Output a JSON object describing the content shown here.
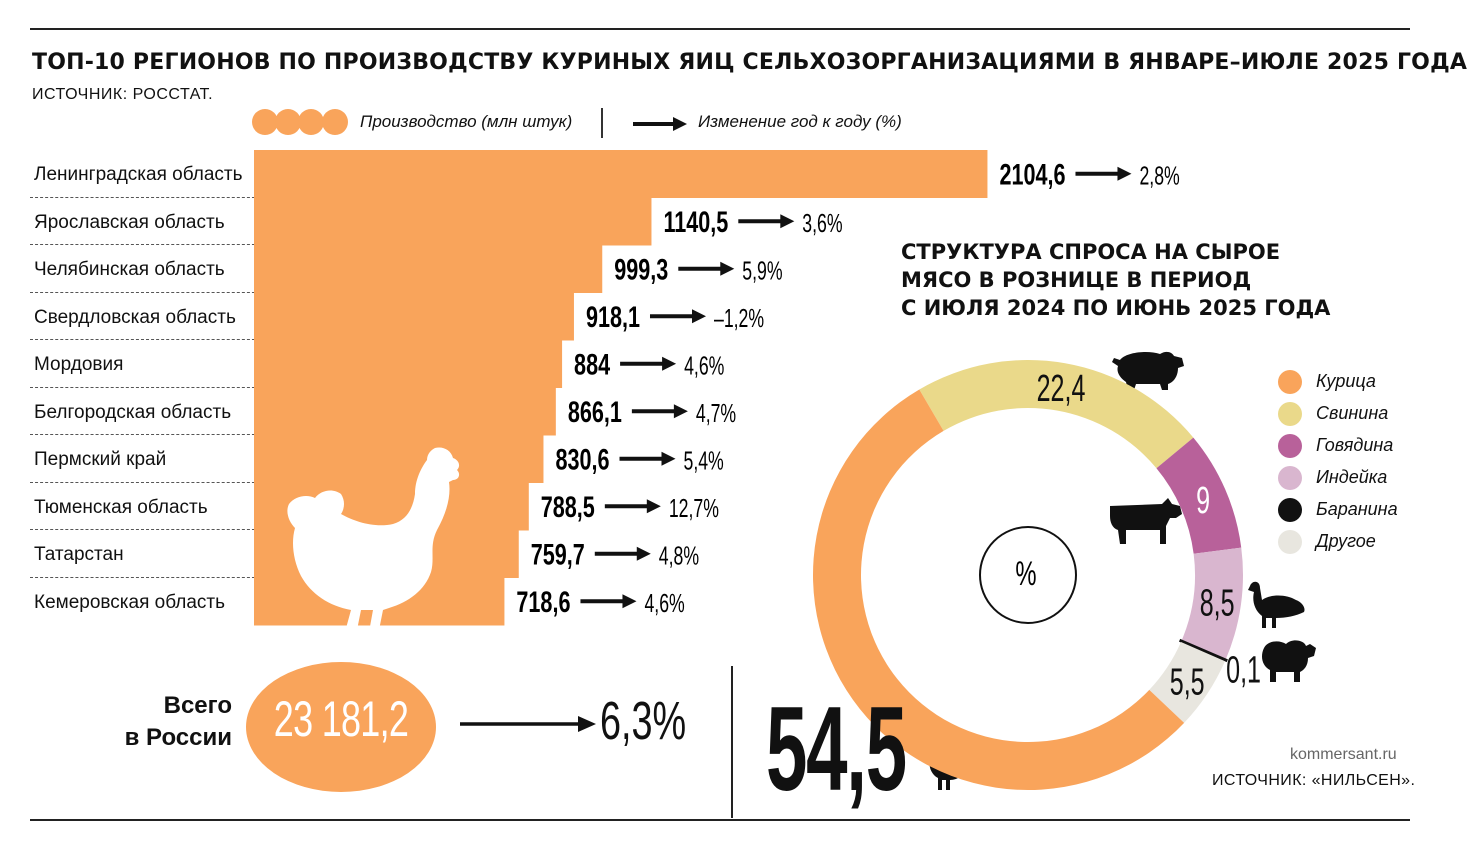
{
  "header": {
    "title": "ТОП-10 РЕГИОНОВ ПО ПРОИЗВОДСТВУ КУРИНЫХ ЯИЦ СЕЛЬХОЗОРГАНИЗАЦИЯМИ В ЯНВАРЕ–ИЮЛЕ 2025 ГОДА",
    "source": "ИСТОЧНИК: РОССТАТ."
  },
  "legend": {
    "production": "Производство (млн штук)",
    "change": "Изменение год к году (%)"
  },
  "total": {
    "label_line1": "Всего",
    "label_line2": "в России",
    "value": "23 181,2",
    "change": "6,3%"
  },
  "chart_data": [
    {
      "type": "bar",
      "title": "ТОП-10 РЕГИОНОВ ПО ПРОИЗВОДСТВУ КУРИНЫХ ЯИЦ СЕЛЬХОЗОРГАНИЗАЦИЯМИ В ЯНВАРЕ–ИЮЛЕ 2025 ГОДА",
      "orientation": "horizontal",
      "categories": [
        "Ленинградская область",
        "Ярославская область",
        "Челябинская область",
        "Свердловская область",
        "Мордовия",
        "Белгородская область",
        "Пермский край",
        "Тюменская область",
        "Татарстан",
        "Кемеровская область"
      ],
      "series": [
        {
          "name": "Производство (млн штук)",
          "values": [
            2104.6,
            1140.5,
            999.3,
            918.1,
            884,
            866.1,
            830.6,
            788.5,
            759.7,
            718.6
          ],
          "labels": [
            "2104,6",
            "1140,5",
            "999,3",
            "918,1",
            "884",
            "866,1",
            "830,6",
            "788,5",
            "759,7",
            "718,6"
          ]
        },
        {
          "name": "Изменение год к году (%)",
          "values": [
            2.8,
            3.6,
            5.9,
            -1.2,
            4.6,
            4.7,
            5.4,
            12.7,
            4.8,
            4.6
          ],
          "labels": [
            "2,8%",
            "3,6%",
            "5,9%",
            "–1,2%",
            "4,6%",
            "4,7%",
            "5,4%",
            "12,7%",
            "4,8%",
            "4,6%"
          ]
        }
      ],
      "colors": {
        "bar": "#F9A45B"
      },
      "grid": false
    },
    {
      "type": "pie",
      "variant": "donut",
      "title": "СТРУКТУРА СПРОСА НА СЫРОЕ МЯСО В РОЗНИЦЕ В ПЕРИОД С ИЮЛЯ 2024 ПО ИЮНЬ 2025 ГОДА",
      "center_label": "%",
      "slices": [
        {
          "name": "Курица",
          "value": 54.5,
          "label": "54,5",
          "color": "#F9A45B",
          "icon": "hen-icon"
        },
        {
          "name": "Свинина",
          "value": 22.4,
          "label": "22,4",
          "color": "#EAD98A",
          "icon": "pig-icon"
        },
        {
          "name": "Говядина",
          "value": 9,
          "label": "9",
          "color": "#B8619A",
          "icon": "cow-icon"
        },
        {
          "name": "Индейка",
          "value": 8.5,
          "label": "8,5",
          "color": "#D9B6CF",
          "icon": "turkey-icon"
        },
        {
          "name": "Баранина",
          "value": 0.1,
          "label": "0,1",
          "color": "#111111",
          "icon": "sheep-icon"
        },
        {
          "name": "Другое",
          "value": 5.5,
          "label": "5,5",
          "color": "#E8E6DF"
        }
      ],
      "legend_position": "right"
    }
  ],
  "footer": {
    "site": "kommersant.ru",
    "source": "ИСТОЧНИК: «НИЛЬСЕН»."
  }
}
